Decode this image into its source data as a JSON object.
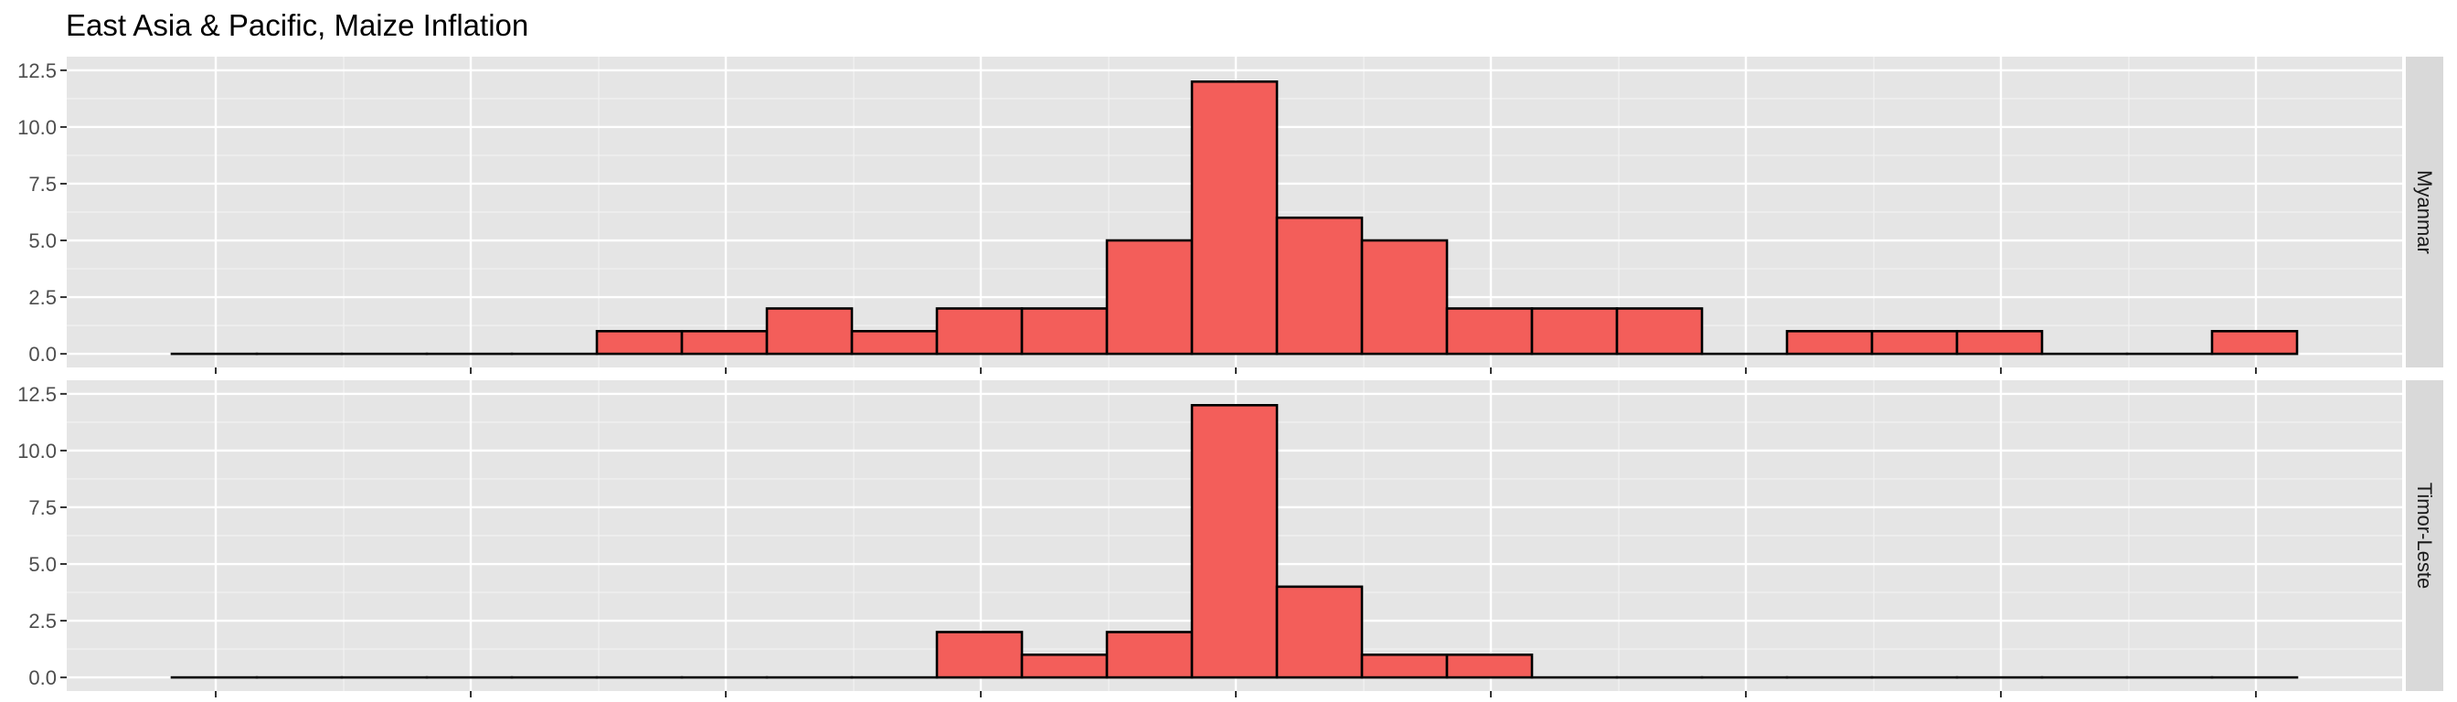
{
  "chart_data": {
    "type": "bar",
    "title": "East Asia & Pacific, Maize Inflation",
    "xlabel": "",
    "ylabel": "",
    "ylim": [
      0,
      12.5
    ],
    "y_ticks": [
      "0.0",
      "2.5",
      "5.0",
      "7.5",
      "10.0",
      "12.5"
    ],
    "y_tick_values": [
      0,
      2.5,
      5,
      7.5,
      10,
      12.5
    ],
    "bins": 25,
    "grid": true,
    "legend": "none",
    "series": [
      {
        "facet": "Myanmar",
        "values": [
          0,
          0,
          0,
          0,
          0,
          1,
          1,
          2,
          1,
          2,
          2,
          5,
          12,
          6,
          5,
          2,
          2,
          2,
          0,
          1,
          1,
          1,
          0,
          0,
          1
        ]
      },
      {
        "facet": "Timor-Leste",
        "values": [
          0,
          0,
          0,
          0,
          0,
          0,
          0,
          0,
          0,
          2,
          1,
          2,
          12,
          4,
          1,
          1,
          0,
          0,
          0,
          0,
          0,
          0,
          0,
          0,
          0
        ]
      }
    ],
    "colors": {
      "bar_fill": "#F35E5A",
      "bar_stroke": "#000000",
      "panel_bg": "#E5E5E5",
      "grid_major": "#FFFFFF",
      "strip_bg": "#D9D9D9"
    }
  }
}
